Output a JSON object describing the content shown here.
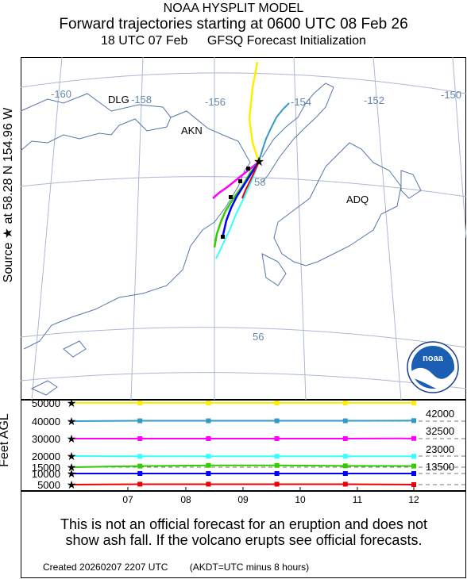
{
  "header": {
    "model": "NOAA HYSPLIT MODEL",
    "title": "Forward trajectories starting at 0600 UTC 08 Feb 26",
    "subtitle_time": "18 UTC 07 Feb",
    "subtitle_model": "GFSQ  Forecast Initialization"
  },
  "source_label": "Source ★  at   58.28 N  154.96 W",
  "feet_label": "Feet AGL",
  "map": {
    "lon_labels": [
      "-160",
      "-158",
      "-156",
      "-154",
      "-152",
      "-150"
    ],
    "lat_labels": [
      "58",
      "56"
    ],
    "places": [
      "DLG",
      "AKN",
      "ADQ"
    ],
    "logo_text": "noaa"
  },
  "colors": {
    "50000": "#ffee00",
    "40000": "#3399cc",
    "30000": "#ff00ff",
    "20000": "#33ffff",
    "15000": "#33cc00",
    "10000": "#0000ff",
    "5000": "#ee0000"
  },
  "chart_data": {
    "type": "line",
    "title": "Forward trajectories starting at 0600 UTC 08 Feb 26",
    "xlabel": "",
    "ylabel": "Feet AGL",
    "x": [
      "07",
      "08",
      "09",
      "10",
      "11",
      "12"
    ],
    "yticks": [
      "50000",
      "40000",
      "30000",
      "20000",
      "15000",
      "10000",
      "5000"
    ],
    "side_labels": [
      "42000",
      "32500",
      "23000",
      "13500"
    ],
    "series": [
      {
        "start_height": 50000,
        "values": [
          50000,
          50000,
          50000,
          50000,
          50000,
          50000
        ]
      },
      {
        "start_height": 40000,
        "values": [
          40000,
          40200,
          40200,
          40200,
          40200,
          40300
        ]
      },
      {
        "start_height": 30000,
        "values": [
          30000,
          30000,
          30000,
          30000,
          30000,
          30100
        ]
      },
      {
        "start_height": 20000,
        "values": [
          20000,
          19900,
          19900,
          19900,
          19900,
          19900
        ]
      },
      {
        "start_height": 15000,
        "values": [
          15000,
          15500,
          15800,
          15800,
          15600,
          15500
        ]
      },
      {
        "start_height": 10000,
        "values": [
          10000,
          10000,
          10000,
          10000,
          10000,
          10000
        ]
      },
      {
        "start_height": 5000,
        "values": [
          5000,
          5200,
          5200,
          5200,
          5200,
          5000
        ]
      }
    ]
  },
  "disclaimer": {
    "line1": "This is not an official forecast for an eruption and does not",
    "line2": "show ash fall. If the volcano erupts see official forecasts."
  },
  "footer": {
    "created": "Created 20260207 2207 UTC",
    "note": "(AKDT=UTC minus 8 hours)"
  }
}
